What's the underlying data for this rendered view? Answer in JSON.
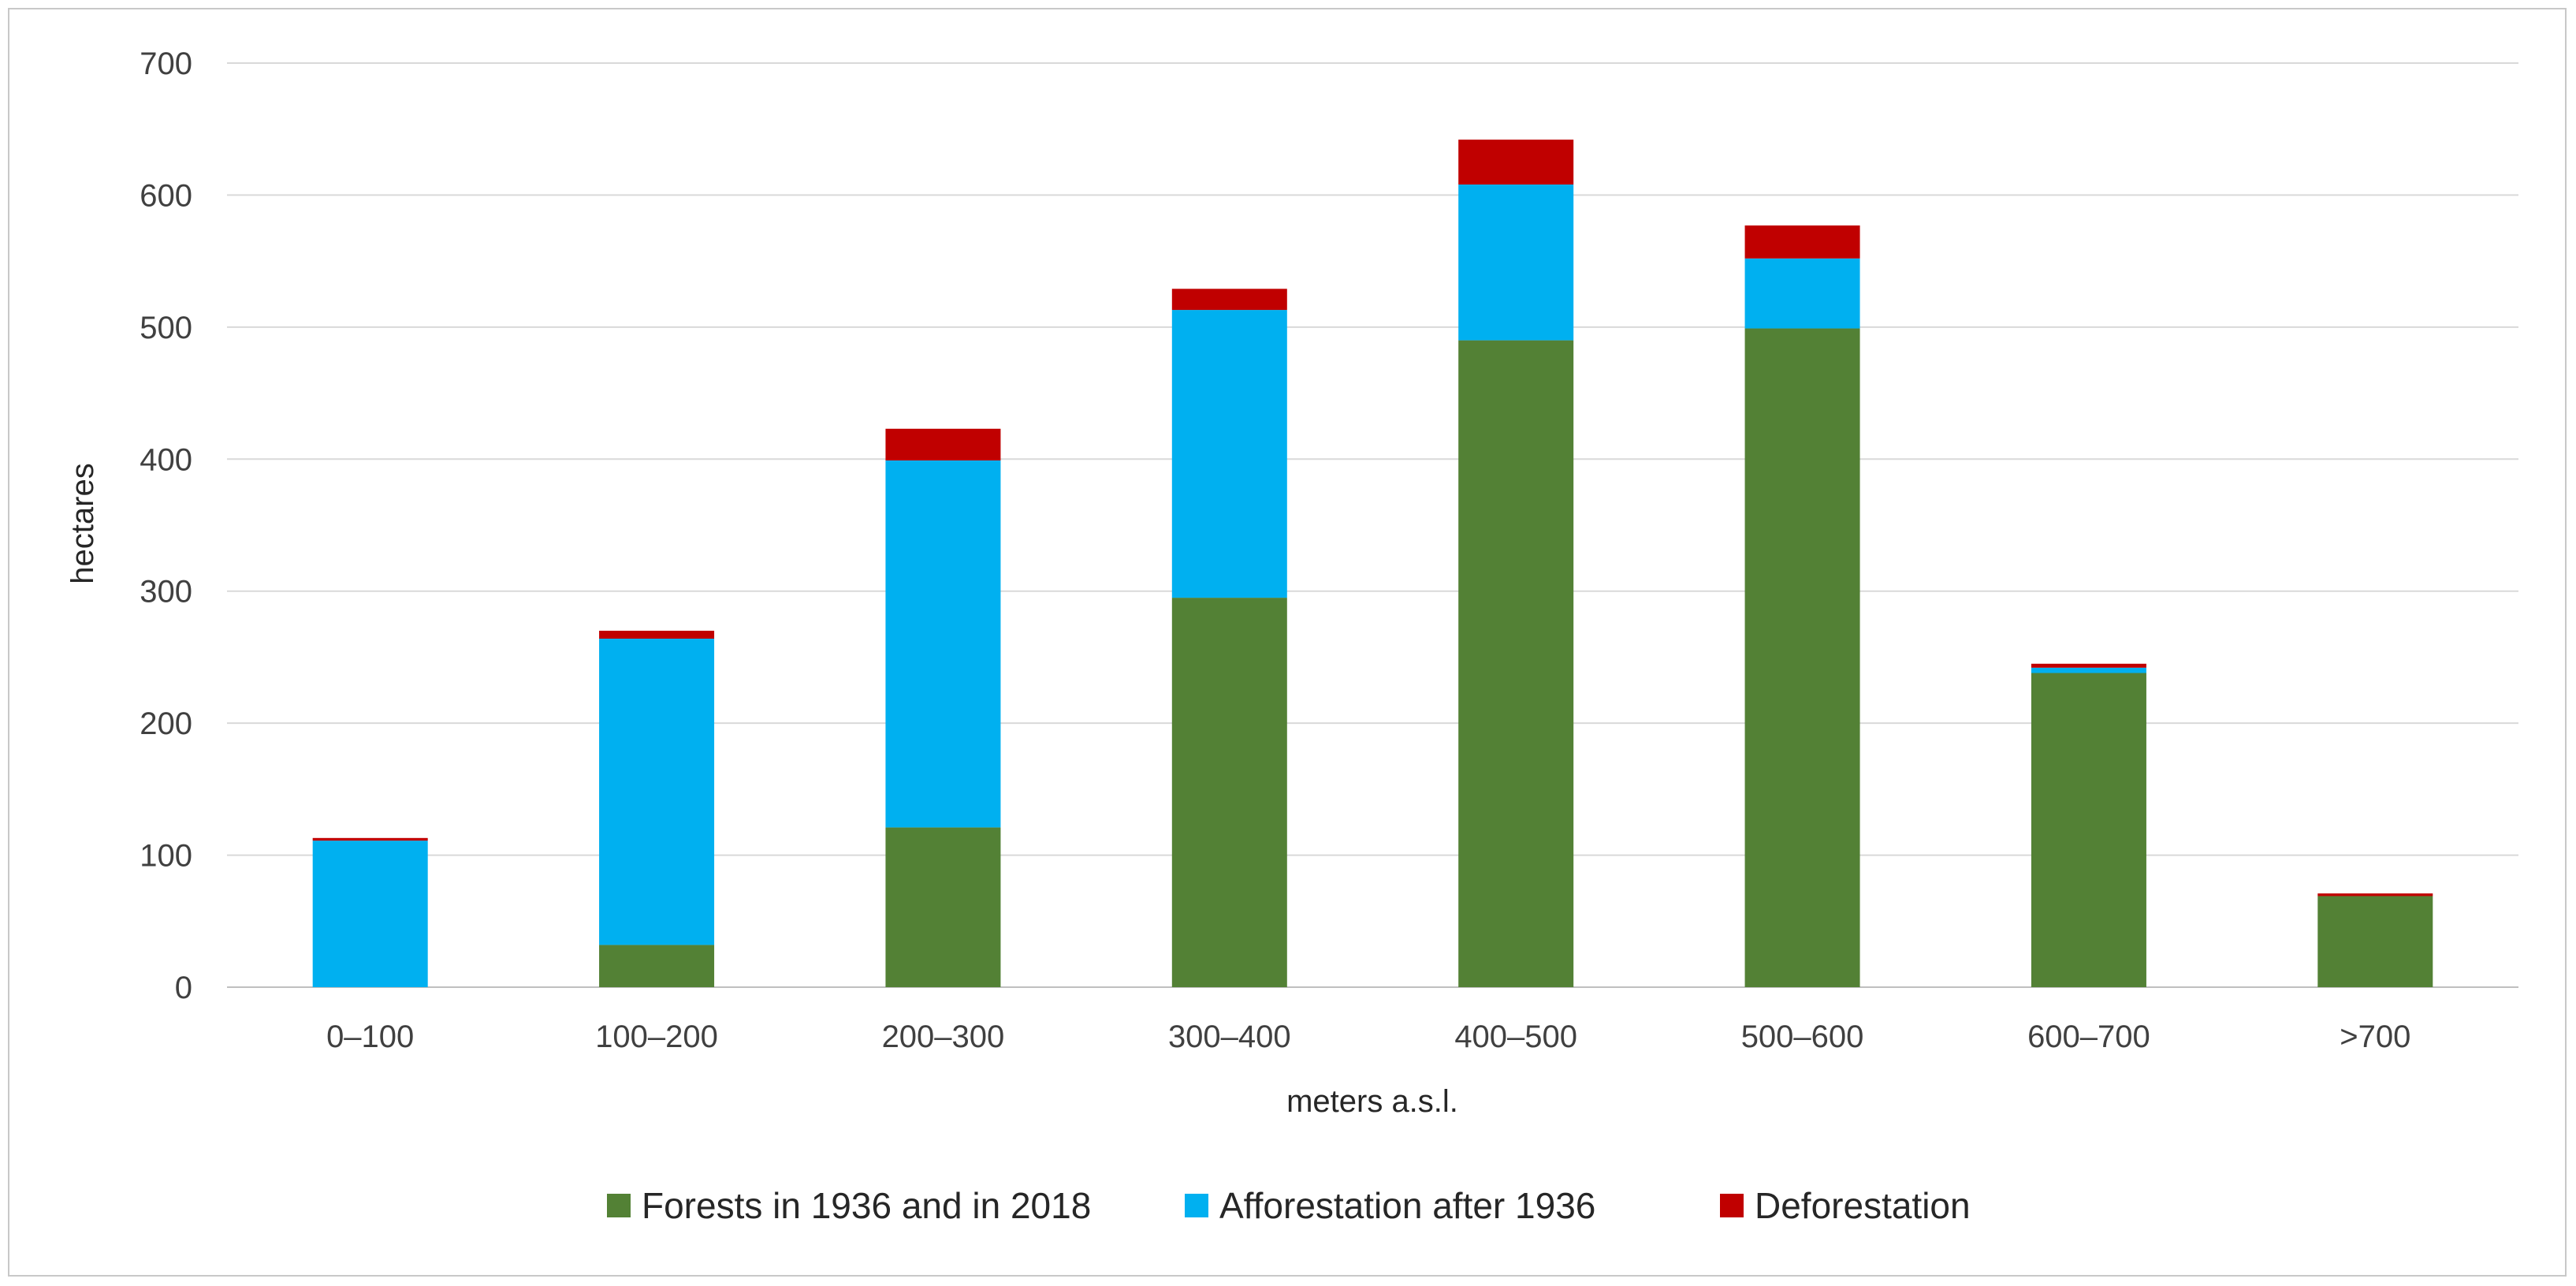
{
  "chart_data": {
    "type": "bar",
    "stacked": true,
    "title": "",
    "xlabel": "meters a.s.l.",
    "ylabel": "hectares",
    "ylim": [
      0,
      700
    ],
    "yticks": [
      0,
      100,
      200,
      300,
      400,
      500,
      600,
      700
    ],
    "grid": true,
    "legend_position": "bottom",
    "categories": [
      "0–100",
      "100–200",
      "200–300",
      "300–400",
      "400–500",
      "500–600",
      "600–700",
      ">700"
    ],
    "series": [
      {
        "name": "Forests in 1936 and in 2018",
        "color": "#538135",
        "values": [
          0,
          32,
          121,
          295,
          490,
          499,
          238,
          69
        ]
      },
      {
        "name": "Afforestation after 1936",
        "color": "#00b0f0",
        "values": [
          111,
          232,
          278,
          218,
          118,
          53,
          4,
          0
        ]
      },
      {
        "name": "Deforestation",
        "color": "#c00000",
        "values": [
          2,
          6,
          24,
          16,
          34,
          25,
          3,
          2
        ]
      }
    ]
  }
}
